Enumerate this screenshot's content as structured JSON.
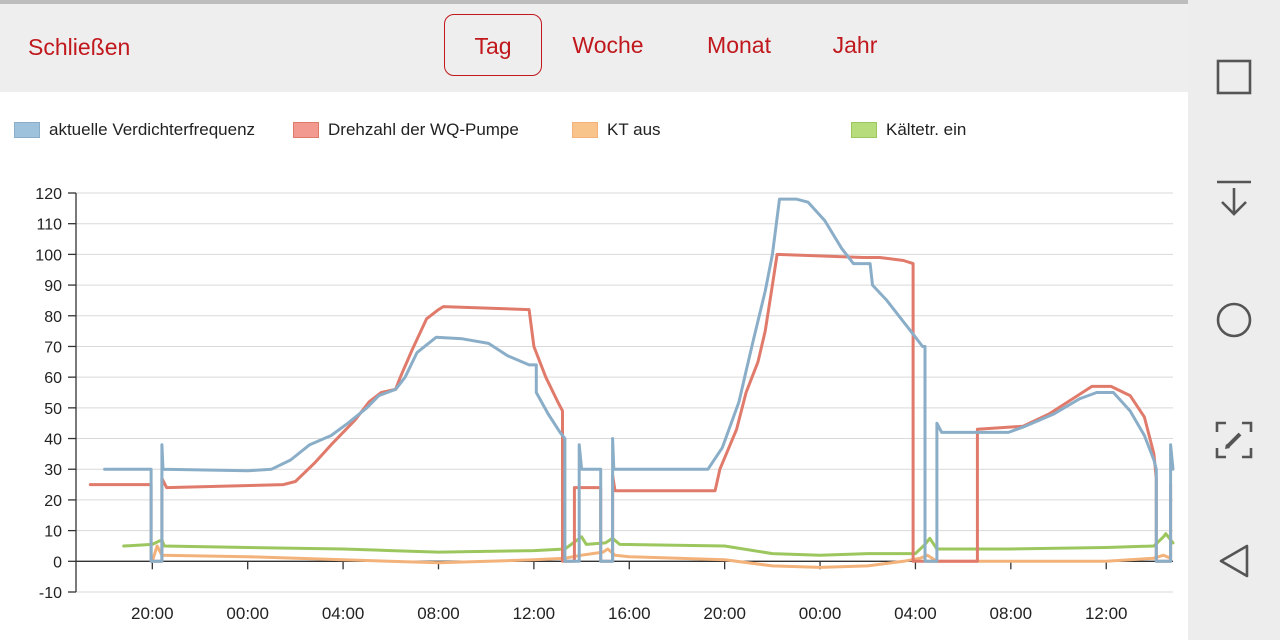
{
  "toolbar": {
    "close_label": "Schließen"
  },
  "tabs": [
    {
      "label": "Tag",
      "active": true
    },
    {
      "label": "Woche",
      "active": false
    },
    {
      "label": "Monat",
      "active": false
    },
    {
      "label": "Jahr",
      "active": false
    }
  ],
  "colors": {
    "accent": "#c0181d",
    "series_blue": "#8aaec8",
    "series_red": "#e07a6b",
    "series_orange": "#f2b27a",
    "series_green": "#9cc65e"
  },
  "chart_data": {
    "type": "line",
    "title": "",
    "xlabel": "",
    "ylabel": "",
    "ylim": [
      -10,
      120
    ],
    "yticks": [
      120,
      110,
      100,
      90,
      80,
      70,
      60,
      50,
      40,
      30,
      20,
      10,
      0,
      -10
    ],
    "x_unit": "hours since first tick (20:00)",
    "xlim": [
      -3.2,
      42.8
    ],
    "xticks": [
      {
        "x": 0,
        "label": "20:00"
      },
      {
        "x": 4,
        "label": "00:00"
      },
      {
        "x": 8,
        "label": "04:00"
      },
      {
        "x": 12,
        "label": "08:00"
      },
      {
        "x": 16,
        "label": "12:00"
      },
      {
        "x": 20,
        "label": "16:00"
      },
      {
        "x": 24,
        "label": "20:00"
      },
      {
        "x": 28,
        "label": "00:00"
      },
      {
        "x": 32,
        "label": "04:00"
      },
      {
        "x": 36,
        "label": "08:00"
      },
      {
        "x": 40,
        "label": "12:00"
      }
    ],
    "grid": true,
    "legend_position": "top",
    "series": [
      {
        "name": "aktuelle Verdichterfrequenz",
        "color": "#8aaec8",
        "points": [
          [
            -2.0,
            30
          ],
          [
            -0.05,
            30
          ],
          [
            -0.05,
            0
          ],
          [
            0.4,
            0
          ],
          [
            0.4,
            38
          ],
          [
            0.45,
            30
          ],
          [
            4,
            29.5
          ],
          [
            5,
            30
          ],
          [
            5.8,
            33
          ],
          [
            6.6,
            38
          ],
          [
            7.5,
            41
          ],
          [
            8.2,
            45
          ],
          [
            9,
            50
          ],
          [
            9.5,
            54
          ],
          [
            10.2,
            56
          ],
          [
            10.6,
            60
          ],
          [
            11.1,
            68
          ],
          [
            11.9,
            73
          ],
          [
            13,
            72.5
          ],
          [
            14.1,
            71
          ],
          [
            14.9,
            67
          ],
          [
            15.8,
            64
          ],
          [
            16.1,
            64
          ],
          [
            16.1,
            55
          ],
          [
            16.6,
            48
          ],
          [
            17.1,
            42
          ],
          [
            17.3,
            40
          ],
          [
            17.3,
            0
          ],
          [
            17.9,
            0
          ],
          [
            17.9,
            38
          ],
          [
            18.0,
            30
          ],
          [
            18.8,
            30
          ],
          [
            18.8,
            0
          ],
          [
            19.3,
            0
          ],
          [
            19.3,
            40
          ],
          [
            19.35,
            30
          ],
          [
            23.3,
            30
          ],
          [
            23.9,
            37
          ],
          [
            24.6,
            52
          ],
          [
            24.9,
            62
          ],
          [
            25.2,
            72
          ],
          [
            25.7,
            88
          ],
          [
            26.0,
            100
          ],
          [
            26.3,
            118
          ],
          [
            27.0,
            118
          ],
          [
            27.5,
            117
          ],
          [
            28.2,
            111
          ],
          [
            28.9,
            102
          ],
          [
            29.4,
            97
          ],
          [
            30.1,
            97
          ],
          [
            30.2,
            90
          ],
          [
            30.8,
            85
          ],
          [
            31.3,
            80
          ],
          [
            31.8,
            75
          ],
          [
            32.3,
            70
          ],
          [
            32.4,
            70
          ],
          [
            32.4,
            0
          ],
          [
            32.9,
            0
          ],
          [
            32.9,
            45
          ],
          [
            33.1,
            42
          ],
          [
            35.9,
            42
          ],
          [
            36.6,
            44
          ],
          [
            37.8,
            48
          ],
          [
            38.9,
            53
          ],
          [
            39.6,
            55
          ],
          [
            40.3,
            55
          ],
          [
            41.0,
            49
          ],
          [
            41.6,
            41
          ],
          [
            42.0,
            33
          ],
          [
            42.1,
            30
          ],
          [
            42.1,
            0
          ],
          [
            42.7,
            0
          ],
          [
            42.7,
            38
          ],
          [
            42.8,
            30
          ]
        ]
      },
      {
        "name": "Drehzahl der WQ-Pumpe",
        "color": "#e07a6b",
        "points": [
          [
            -2.6,
            25
          ],
          [
            -0.05,
            25
          ],
          [
            -0.05,
            0
          ],
          [
            0.4,
            0
          ],
          [
            0.4,
            27
          ],
          [
            0.6,
            24
          ],
          [
            5.5,
            25
          ],
          [
            6,
            26
          ],
          [
            6.8,
            32
          ],
          [
            7.5,
            38
          ],
          [
            8.5,
            46
          ],
          [
            9.1,
            52
          ],
          [
            9.6,
            55
          ],
          [
            10.2,
            56
          ],
          [
            10.4,
            60
          ],
          [
            10.9,
            69
          ],
          [
            11.5,
            79
          ],
          [
            12,
            82
          ],
          [
            12.2,
            83
          ],
          [
            15.8,
            82
          ],
          [
            16,
            70
          ],
          [
            16.5,
            60
          ],
          [
            17,
            52
          ],
          [
            17.2,
            49
          ],
          [
            17.2,
            0
          ],
          [
            17.7,
            0
          ],
          [
            17.7,
            24
          ],
          [
            18.8,
            24
          ],
          [
            18.8,
            0
          ],
          [
            19.3,
            0
          ],
          [
            19.3,
            28
          ],
          [
            19.4,
            23
          ],
          [
            23.6,
            23
          ],
          [
            23.8,
            30
          ],
          [
            24.5,
            43
          ],
          [
            24.9,
            55
          ],
          [
            25.4,
            65
          ],
          [
            25.7,
            75
          ],
          [
            26.0,
            90
          ],
          [
            26.2,
            100
          ],
          [
            29.8,
            99
          ],
          [
            30.5,
            99
          ],
          [
            31.5,
            98
          ],
          [
            31.9,
            97
          ],
          [
            31.9,
            0
          ],
          [
            34.6,
            0
          ],
          [
            34.6,
            43
          ],
          [
            36.5,
            44
          ],
          [
            37.6,
            48
          ],
          [
            38.8,
            54
          ],
          [
            39.4,
            57
          ],
          [
            40.2,
            57
          ],
          [
            41.0,
            54
          ],
          [
            41.6,
            47
          ],
          [
            42.0,
            35
          ],
          [
            42.1,
            27
          ],
          [
            42.1,
            0
          ],
          [
            42.7,
            0
          ],
          [
            42.7,
            25
          ]
        ]
      },
      {
        "name": "KT aus",
        "color": "#f2b27a",
        "points": [
          [
            0,
            0
          ],
          [
            0.2,
            5
          ],
          [
            0.4,
            2
          ],
          [
            4,
            1.5
          ],
          [
            8,
            0.5
          ],
          [
            12,
            -0.5
          ],
          [
            16,
            0.5
          ],
          [
            17.3,
            1
          ],
          [
            18,
            2
          ],
          [
            18.9,
            3
          ],
          [
            19.1,
            4
          ],
          [
            19.4,
            2
          ],
          [
            20,
            1.5
          ],
          [
            24,
            0.5
          ],
          [
            26,
            -1.5
          ],
          [
            28,
            -2
          ],
          [
            30,
            -1.5
          ],
          [
            31.5,
            0
          ],
          [
            32.2,
            1
          ],
          [
            32.5,
            2
          ],
          [
            32.9,
            0
          ],
          [
            36,
            0
          ],
          [
            40,
            0
          ],
          [
            42,
            1
          ],
          [
            42.4,
            2
          ],
          [
            42.7,
            1
          ]
        ]
      },
      {
        "name": "Kältetr. ein",
        "color": "#9cc65e",
        "points": [
          [
            -1.2,
            5
          ],
          [
            0,
            5.5
          ],
          [
            0.4,
            7
          ],
          [
            0.5,
            5
          ],
          [
            4,
            4.5
          ],
          [
            8,
            4
          ],
          [
            10,
            3.5
          ],
          [
            12,
            3
          ],
          [
            16,
            3.5
          ],
          [
            17.3,
            4
          ],
          [
            18,
            8
          ],
          [
            18.2,
            5.5
          ],
          [
            19,
            6
          ],
          [
            19.3,
            7.5
          ],
          [
            19.6,
            5.5
          ],
          [
            24,
            5
          ],
          [
            26,
            2.5
          ],
          [
            28,
            2
          ],
          [
            30,
            2.5
          ],
          [
            32,
            2.5
          ],
          [
            32.4,
            5.5
          ],
          [
            32.6,
            7.5
          ],
          [
            32.9,
            4
          ],
          [
            36,
            4
          ],
          [
            40,
            4.5
          ],
          [
            42,
            5
          ],
          [
            42.4,
            8
          ],
          [
            42.5,
            9
          ],
          [
            42.8,
            6
          ]
        ]
      }
    ]
  },
  "navbar": [
    {
      "name": "overview-icon"
    },
    {
      "name": "download-icon"
    },
    {
      "name": "home-icon"
    },
    {
      "name": "screenshot-edit-icon"
    },
    {
      "name": "back-icon"
    }
  ]
}
